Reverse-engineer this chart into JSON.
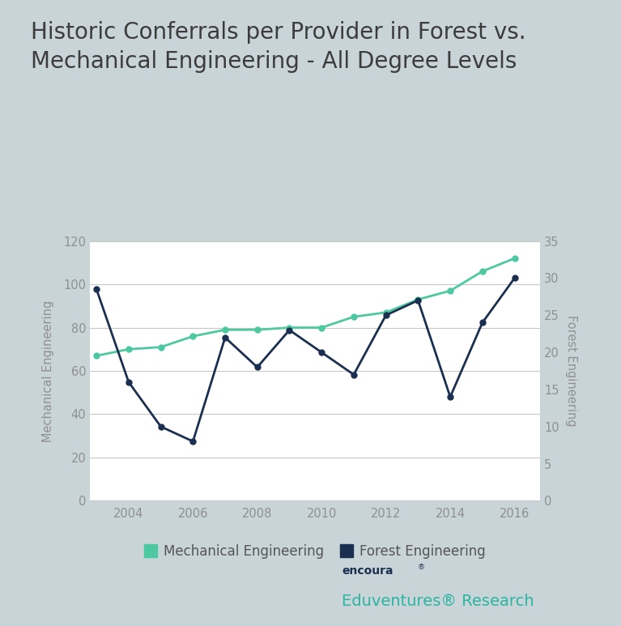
{
  "title": "Historic Conferrals per Provider in Forest vs.\nMechanical Engineering - All Degree Levels",
  "title_fontsize": 20,
  "years": [
    2003,
    2004,
    2005,
    2006,
    2007,
    2008,
    2009,
    2010,
    2011,
    2012,
    2013,
    2014,
    2015,
    2016
  ],
  "mechanical": [
    67,
    70,
    71,
    76,
    79,
    79,
    80,
    80,
    85,
    87,
    93,
    97,
    106,
    112
  ],
  "forest": [
    28.5,
    16,
    10,
    8,
    22,
    18,
    23,
    20,
    17,
    25,
    27,
    14,
    24,
    30
  ],
  "mech_color": "#4DC8A0",
  "forest_color": "#1B3050",
  "left_ylabel": "Mechanical Engineering",
  "right_ylabel": "Forest Engineering",
  "left_ylim": [
    0,
    120
  ],
  "right_ylim": [
    0,
    35
  ],
  "left_yticks": [
    0,
    20,
    40,
    60,
    80,
    100,
    120
  ],
  "right_yticks": [
    0,
    5,
    10,
    15,
    20,
    25,
    30,
    35
  ],
  "xticks": [
    2004,
    2006,
    2008,
    2010,
    2012,
    2014,
    2016
  ],
  "legend_mech": "Mechanical Engineering",
  "legend_forest": "Forest Engineering",
  "bg_outer": "#C8D4D8",
  "bg_chart": "#FFFFFF",
  "grid_color": "#C8C8C8",
  "tick_color": "#909090",
  "label_color": "#909090",
  "marker_size": 5,
  "line_width": 2.0,
  "brand_name": "encoura",
  "brand_sup": "®",
  "brand_tagline": "Eduventures® Research",
  "brand_name_color": "#1B3050",
  "brand_tagline_color": "#2BB5A0",
  "brand_bg": "#FFFFFF"
}
